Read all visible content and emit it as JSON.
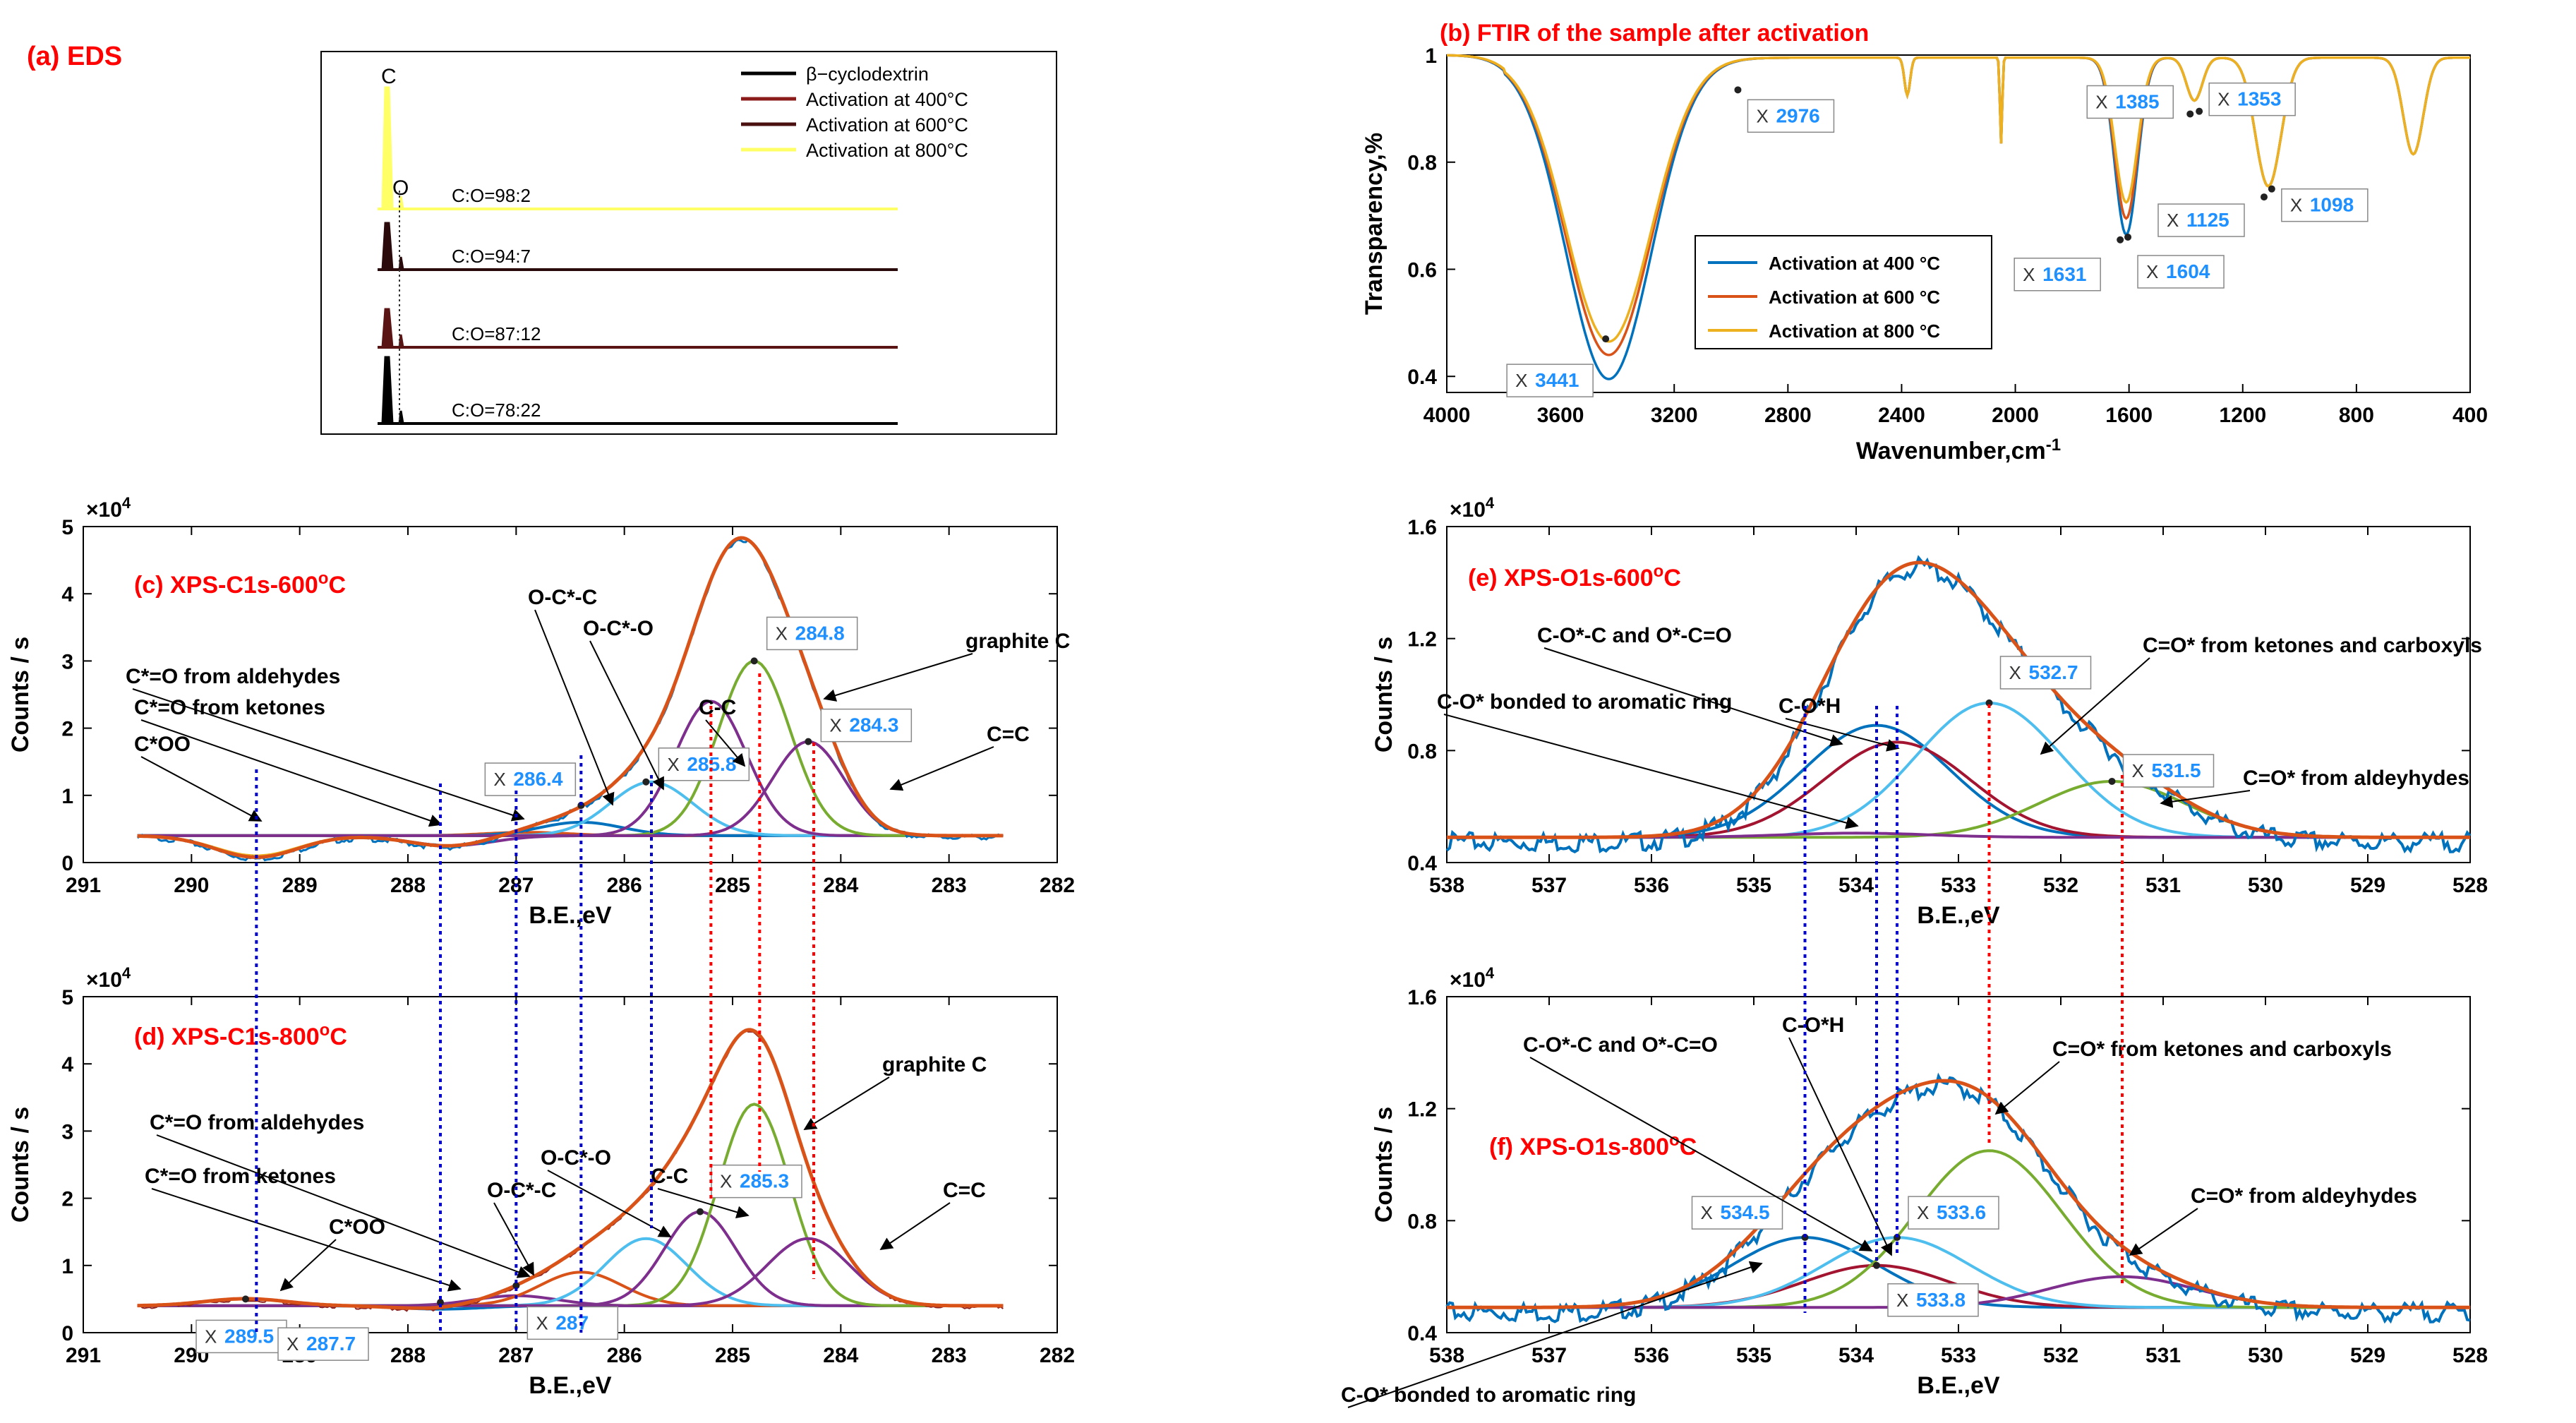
{
  "chart_data": [
    {
      "id": "a",
      "type": "line",
      "title": "(a) EDS",
      "legend": [
        "β−cyclodextrin",
        "Activation at 400°C",
        "Activation at 600°C",
        "Activation at 800°C"
      ],
      "peak_labels": [
        "C",
        "O"
      ],
      "ratios": [
        "C:O=98:2",
        "C:O=94:7",
        "C:O=87:12",
        "C:O=78:22"
      ],
      "colors": [
        "#000000",
        "#8b1a1a",
        "#4a1010",
        "#ffff66"
      ]
    },
    {
      "id": "b",
      "type": "line",
      "title": "(b) FTIR of the sample after activation",
      "xlabel": "Wavenumber,cm",
      "xlabel_sup": "-1",
      "ylabel": "Transparency,%",
      "xlim": [
        4000,
        400
      ],
      "ylim": [
        0.37,
        1.0
      ],
      "xticks": [
        "4000",
        "3600",
        "3200",
        "2800",
        "2400",
        "2000",
        "1600",
        "1200",
        "800",
        "400"
      ],
      "yticks": [
        "0.4",
        "0.6",
        "0.8",
        "1"
      ],
      "legend": [
        "Activation at 400 °C",
        "Activation at 600 °C",
        "Activation at 800 °C"
      ],
      "series": [
        {
          "name": "Activation at 400 °C",
          "color": "#0072bd"
        },
        {
          "name": "Activation at 600 °C",
          "color": "#d95319"
        },
        {
          "name": "Activation at 800 °C",
          "color": "#edb120"
        }
      ],
      "datatips": [
        {
          "x": 3441,
          "y": 0.47,
          "text": "3441"
        },
        {
          "x": 2976,
          "y": 0.935,
          "text": "2976"
        },
        {
          "x": 1631,
          "y": 0.655,
          "text": "1631"
        },
        {
          "x": 1604,
          "y": 0.66,
          "text": "1604"
        },
        {
          "x": 1385,
          "y": 0.89,
          "text": "1385"
        },
        {
          "x": 1353,
          "y": 0.895,
          "text": "1353"
        },
        {
          "x": 1125,
          "y": 0.735,
          "text": "1125"
        },
        {
          "x": 1098,
          "y": 0.75,
          "text": "1098"
        }
      ]
    },
    {
      "id": "c",
      "type": "line",
      "title": "(c) XPS-C1s-600",
      "title_sup": "o",
      "title_end": "C",
      "xlabel": "B.E.,eV",
      "ylabel": "Counts / s",
      "multiplier": "×10",
      "multiplier_exp": "4",
      "xlim": [
        291,
        282
      ],
      "ylim": [
        0,
        5
      ],
      "xticks": [
        "291",
        "290",
        "289",
        "288",
        "287",
        "286",
        "285",
        "284",
        "283",
        "282"
      ],
      "yticks": [
        "0",
        "1",
        "2",
        "3",
        "4",
        "5"
      ],
      "envelope_peak": 4.7,
      "components": [
        {
          "center": 289.4,
          "height": 0.1,
          "color": "#edb120"
        },
        {
          "center": 287.6,
          "height": 0.25,
          "color": "#7e2f8e"
        },
        {
          "center": 286.9,
          "height": 0.45,
          "color": "#d95319"
        },
        {
          "center": 286.4,
          "height": 0.6,
          "color": "#0072bd"
        },
        {
          "center": 285.75,
          "height": 1.2,
          "color": "#4dbeee"
        },
        {
          "center": 285.2,
          "height": 2.4,
          "color": "#7e2f8e"
        },
        {
          "center": 284.8,
          "height": 3.0,
          "color": "#77ac30"
        },
        {
          "center": 284.3,
          "height": 1.8,
          "color": "#7e2f8e"
        }
      ],
      "datatips": [
        {
          "x": 286.4,
          "y": 0.85,
          "text": "286.4"
        },
        {
          "x": 285.8,
          "y": 1.2,
          "text": "285.8"
        },
        {
          "x": 284.8,
          "y": 3.0,
          "text": "284.8"
        },
        {
          "x": 284.3,
          "y": 1.8,
          "text": "284.3"
        }
      ],
      "annotations": [
        "C-C",
        "O-C*-C",
        "O-C*-O",
        "C*=O from aldehydes",
        "C*=O from ketones",
        "C*OO",
        "graphite C",
        "C=C"
      ]
    },
    {
      "id": "d",
      "type": "line",
      "title": "(d) XPS-C1s-800",
      "title_sup": "o",
      "title_end": "C",
      "xlabel": "B.E.,eV",
      "ylabel": "Counts / s",
      "multiplier": "×10",
      "multiplier_exp": "4",
      "xlim": [
        291,
        282
      ],
      "ylim": [
        0,
        5
      ],
      "xticks": [
        "291",
        "290",
        "289",
        "288",
        "287",
        "286",
        "285",
        "284",
        "283",
        "282"
      ],
      "yticks": [
        "0",
        "1",
        "2",
        "3",
        "4",
        "5"
      ],
      "envelope_peak": 4.6,
      "components": [
        {
          "center": 289.5,
          "height": 0.5,
          "color": "#edb120"
        },
        {
          "center": 287.7,
          "height": 0.35,
          "color": "#0072bd"
        },
        {
          "center": 287.0,
          "height": 0.55,
          "color": "#7e2f8e"
        },
        {
          "center": 286.4,
          "height": 0.9,
          "color": "#d95319"
        },
        {
          "center": 285.8,
          "height": 1.4,
          "color": "#4dbeee"
        },
        {
          "center": 285.3,
          "height": 1.8,
          "color": "#7e2f8e"
        },
        {
          "center": 284.8,
          "height": 3.4,
          "color": "#77ac30"
        },
        {
          "center": 284.3,
          "height": 1.4,
          "color": "#7e2f8e"
        }
      ],
      "datatips": [
        {
          "x": 289.5,
          "y": 0.5,
          "text": "289.5"
        },
        {
          "x": 287.7,
          "y": 0.45,
          "text": "287.7"
        },
        {
          "x": 287.0,
          "y": 0.7,
          "text": "287"
        },
        {
          "x": 285.3,
          "y": 1.8,
          "text": "285.3"
        }
      ],
      "annotations": [
        "graphite C",
        "C*=O from aldehydes",
        "C*=O from ketones",
        "O-C*-O",
        "C-C",
        "O-C*-C",
        "C*OO",
        "C=C"
      ]
    },
    {
      "id": "e",
      "type": "line",
      "title": "(e) XPS-O1s-600",
      "title_sup": "o",
      "title_end": "C",
      "xlabel": "B.E.,eV",
      "ylabel": "Counts / s",
      "multiplier": "×10",
      "multiplier_exp": "4",
      "xlim": [
        538,
        528
      ],
      "ylim": [
        0.4,
        1.6
      ],
      "xticks": [
        "538",
        "537",
        "536",
        "535",
        "534",
        "533",
        "532",
        "531",
        "530",
        "529",
        "528"
      ],
      "yticks": [
        "0.4",
        "0.8",
        "1.2",
        "1.6"
      ],
      "baseline": 0.49,
      "envelope_peak": 1.42,
      "components": [
        {
          "center": 533.8,
          "height": 0.89,
          "color": "#0072bd"
        },
        {
          "center": 533.6,
          "height": 0.83,
          "color": "#a2142f"
        },
        {
          "center": 532.7,
          "height": 0.97,
          "color": "#4dbeee"
        },
        {
          "center": 531.5,
          "height": 0.69,
          "color": "#77ac30"
        },
        {
          "center": 534.0,
          "height": 0.505,
          "color": "#7e2f8e"
        }
      ],
      "datatips": [
        {
          "x": 532.7,
          "y": 0.97,
          "text": "532.7"
        },
        {
          "x": 531.5,
          "y": 0.69,
          "text": "531.5"
        }
      ],
      "annotations": [
        "C-O*-C and O*-C=O",
        "C-O*H",
        "C-O* bonded to aromatic ring",
        "C=O* from ketones and carboxyls",
        "C=O* from aldeyhydes"
      ]
    },
    {
      "id": "f",
      "type": "line",
      "title": "(f) XPS-O1s-800",
      "title_sup": "o",
      "title_end": "C",
      "xlabel": "B.E.,eV",
      "ylabel": "Counts / s",
      "multiplier": "×10",
      "multiplier_exp": "4",
      "xlim": [
        538,
        528
      ],
      "ylim": [
        0.4,
        1.6
      ],
      "xticks": [
        "538",
        "537",
        "536",
        "535",
        "534",
        "533",
        "532",
        "531",
        "530",
        "529",
        "528"
      ],
      "yticks": [
        "0.4",
        "0.8",
        "1.2",
        "1.6"
      ],
      "baseline": 0.49,
      "envelope_peak": 1.27,
      "components": [
        {
          "center": 534.5,
          "height": 0.74,
          "color": "#0072bd"
        },
        {
          "center": 533.8,
          "height": 0.64,
          "color": "#a2142f"
        },
        {
          "center": 533.6,
          "height": 0.74,
          "color": "#4dbeee"
        },
        {
          "center": 532.7,
          "height": 1.05,
          "color": "#77ac30"
        },
        {
          "center": 531.4,
          "height": 0.6,
          "color": "#7e2f8e"
        }
      ],
      "datatips": [
        {
          "x": 534.5,
          "y": 0.74,
          "text": "534.5"
        },
        {
          "x": 533.6,
          "y": 0.74,
          "text": "533.6"
        },
        {
          "x": 533.8,
          "y": 0.64,
          "text": "533.8"
        }
      ],
      "annotations": [
        "C-O*-C and O*-C=O",
        "C-O*H",
        "C=O* from ketones and carboxyls",
        "C=O* from aldeyhydes",
        "C-O* bonded to aromatic ring"
      ]
    }
  ]
}
